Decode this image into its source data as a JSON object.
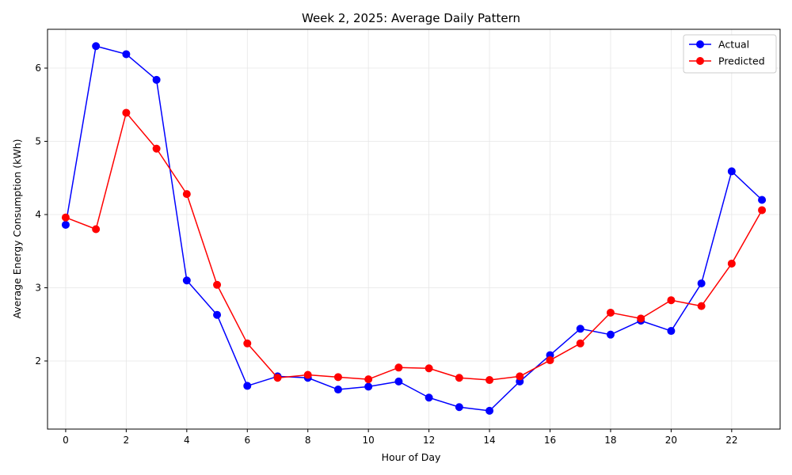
{
  "chart_data": {
    "type": "line",
    "title": "Week 2, 2025: Average Daily Pattern",
    "xlabel": "Hour of Day",
    "ylabel": "Average Energy Consumption (kWh)",
    "x": [
      0,
      1,
      2,
      3,
      4,
      5,
      6,
      7,
      8,
      9,
      10,
      11,
      12,
      13,
      14,
      15,
      16,
      17,
      18,
      19,
      20,
      21,
      22,
      23
    ],
    "xlim": [
      -0.6,
      23.6
    ],
    "ylim": [
      1.07,
      6.53
    ],
    "xticks": [
      0,
      2,
      4,
      6,
      8,
      10,
      12,
      14,
      16,
      18,
      20,
      22
    ],
    "yticks": [
      2,
      3,
      4,
      5,
      6
    ],
    "grid": true,
    "legend_position": "top-right",
    "series": [
      {
        "name": "Actual",
        "color": "#0000ff",
        "marker": "circle",
        "values": [
          3.86,
          6.3,
          6.19,
          5.84,
          3.1,
          2.63,
          1.66,
          1.79,
          1.77,
          1.61,
          1.65,
          1.72,
          1.5,
          1.37,
          1.32,
          1.72,
          2.08,
          2.44,
          2.36,
          2.55,
          2.41,
          3.06,
          4.59,
          4.2
        ]
      },
      {
        "name": "Predicted",
        "color": "#ff0000",
        "marker": "circle",
        "values": [
          3.96,
          3.8,
          5.39,
          4.9,
          4.28,
          3.04,
          2.24,
          1.77,
          1.81,
          1.78,
          1.75,
          1.91,
          1.9,
          1.77,
          1.74,
          1.79,
          2.01,
          2.24,
          2.66,
          2.58,
          2.83,
          2.75,
          3.33,
          4.06
        ]
      }
    ]
  }
}
